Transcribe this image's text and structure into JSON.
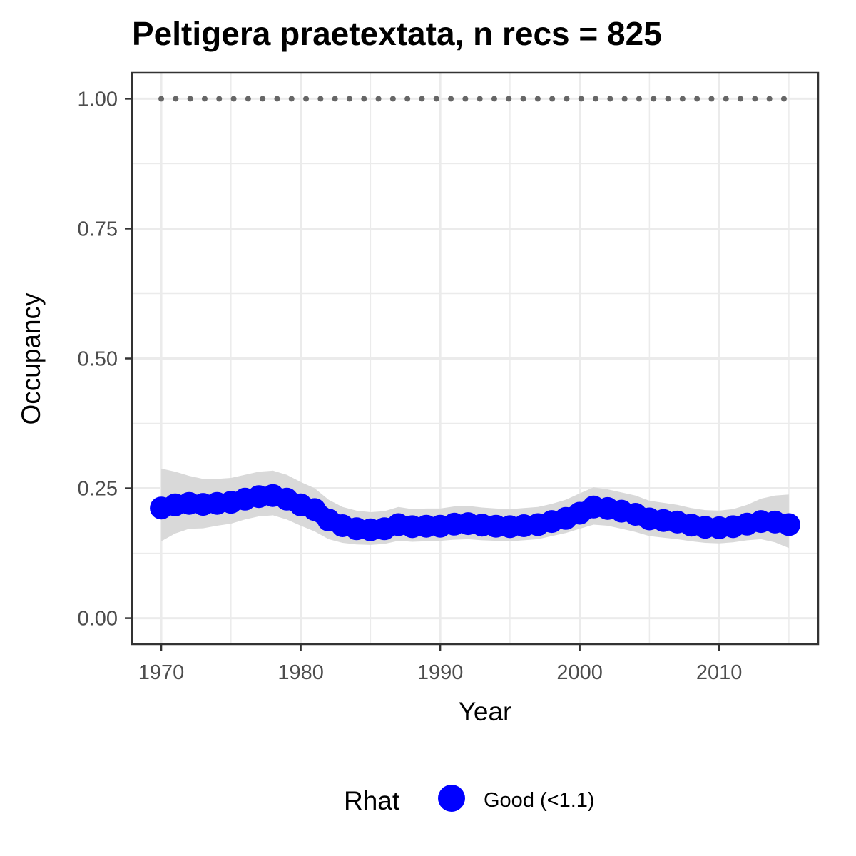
{
  "chart_data": {
    "type": "line",
    "title": "Peltigera praetextata, n recs = 825",
    "xlabel": "Year",
    "ylabel": "Occupancy",
    "xlim": [
      1967.9,
      2017.1
    ],
    "ylim": [
      -0.05,
      1.05
    ],
    "x_ticks": [
      1970,
      1980,
      1990,
      2000,
      2010
    ],
    "x_tick_labels": [
      "1970",
      "1980",
      "1990",
      "2000",
      "2010"
    ],
    "y_ticks": [
      0,
      0.25,
      0.5,
      0.75,
      1.0
    ],
    "y_tick_labels": [
      "0.00",
      "0.25",
      "0.50",
      "0.75",
      "1.00"
    ],
    "grid": true,
    "colors": {
      "series": "#0000ff",
      "ribbon": "#d9d9d9",
      "reference": "#666666",
      "grid": "#ebebeb",
      "border": "#333333"
    },
    "x": [
      1970,
      1971,
      1972,
      1973,
      1974,
      1975,
      1976,
      1977,
      1978,
      1979,
      1980,
      1981,
      1982,
      1983,
      1984,
      1985,
      1986,
      1987,
      1988,
      1989,
      1990,
      1991,
      1992,
      1993,
      1994,
      1995,
      1996,
      1997,
      1998,
      1999,
      2000,
      2001,
      2002,
      2003,
      2004,
      2005,
      2006,
      2007,
      2008,
      2009,
      2010,
      2011,
      2012,
      2013,
      2014,
      2015
    ],
    "series": [
      {
        "values": [
          0.212,
          0.218,
          0.221,
          0.219,
          0.221,
          0.223,
          0.229,
          0.234,
          0.236,
          0.229,
          0.218,
          0.209,
          0.189,
          0.178,
          0.172,
          0.17,
          0.172,
          0.18,
          0.176,
          0.177,
          0.177,
          0.181,
          0.182,
          0.179,
          0.177,
          0.176,
          0.178,
          0.18,
          0.186,
          0.192,
          0.202,
          0.214,
          0.211,
          0.206,
          0.2,
          0.191,
          0.188,
          0.185,
          0.179,
          0.175,
          0.174,
          0.176,
          0.181,
          0.186,
          0.185,
          0.18
        ],
        "lower": [
          0.148,
          0.163,
          0.172,
          0.173,
          0.178,
          0.182,
          0.19,
          0.196,
          0.198,
          0.19,
          0.178,
          0.167,
          0.152,
          0.145,
          0.142,
          0.141,
          0.143,
          0.149,
          0.147,
          0.148,
          0.149,
          0.151,
          0.152,
          0.15,
          0.149,
          0.148,
          0.15,
          0.152,
          0.158,
          0.164,
          0.172,
          0.18,
          0.178,
          0.172,
          0.166,
          0.158,
          0.155,
          0.152,
          0.148,
          0.145,
          0.144,
          0.146,
          0.15,
          0.152,
          0.146,
          0.135
        ],
        "upper": [
          0.288,
          0.282,
          0.274,
          0.268,
          0.268,
          0.27,
          0.276,
          0.282,
          0.284,
          0.276,
          0.262,
          0.25,
          0.228,
          0.214,
          0.207,
          0.204,
          0.206,
          0.214,
          0.21,
          0.211,
          0.211,
          0.215,
          0.216,
          0.213,
          0.211,
          0.21,
          0.212,
          0.214,
          0.22,
          0.228,
          0.24,
          0.252,
          0.248,
          0.242,
          0.236,
          0.226,
          0.222,
          0.218,
          0.212,
          0.208,
          0.207,
          0.21,
          0.218,
          0.23,
          0.236,
          0.238
        ]
      }
    ],
    "reference_line": {
      "y": 1.0,
      "style": "dotted"
    },
    "legend": {
      "title": "Rhat",
      "entries": [
        {
          "label": "Good (<1.1)",
          "color": "#0000ff"
        }
      ],
      "position": "bottom"
    }
  }
}
